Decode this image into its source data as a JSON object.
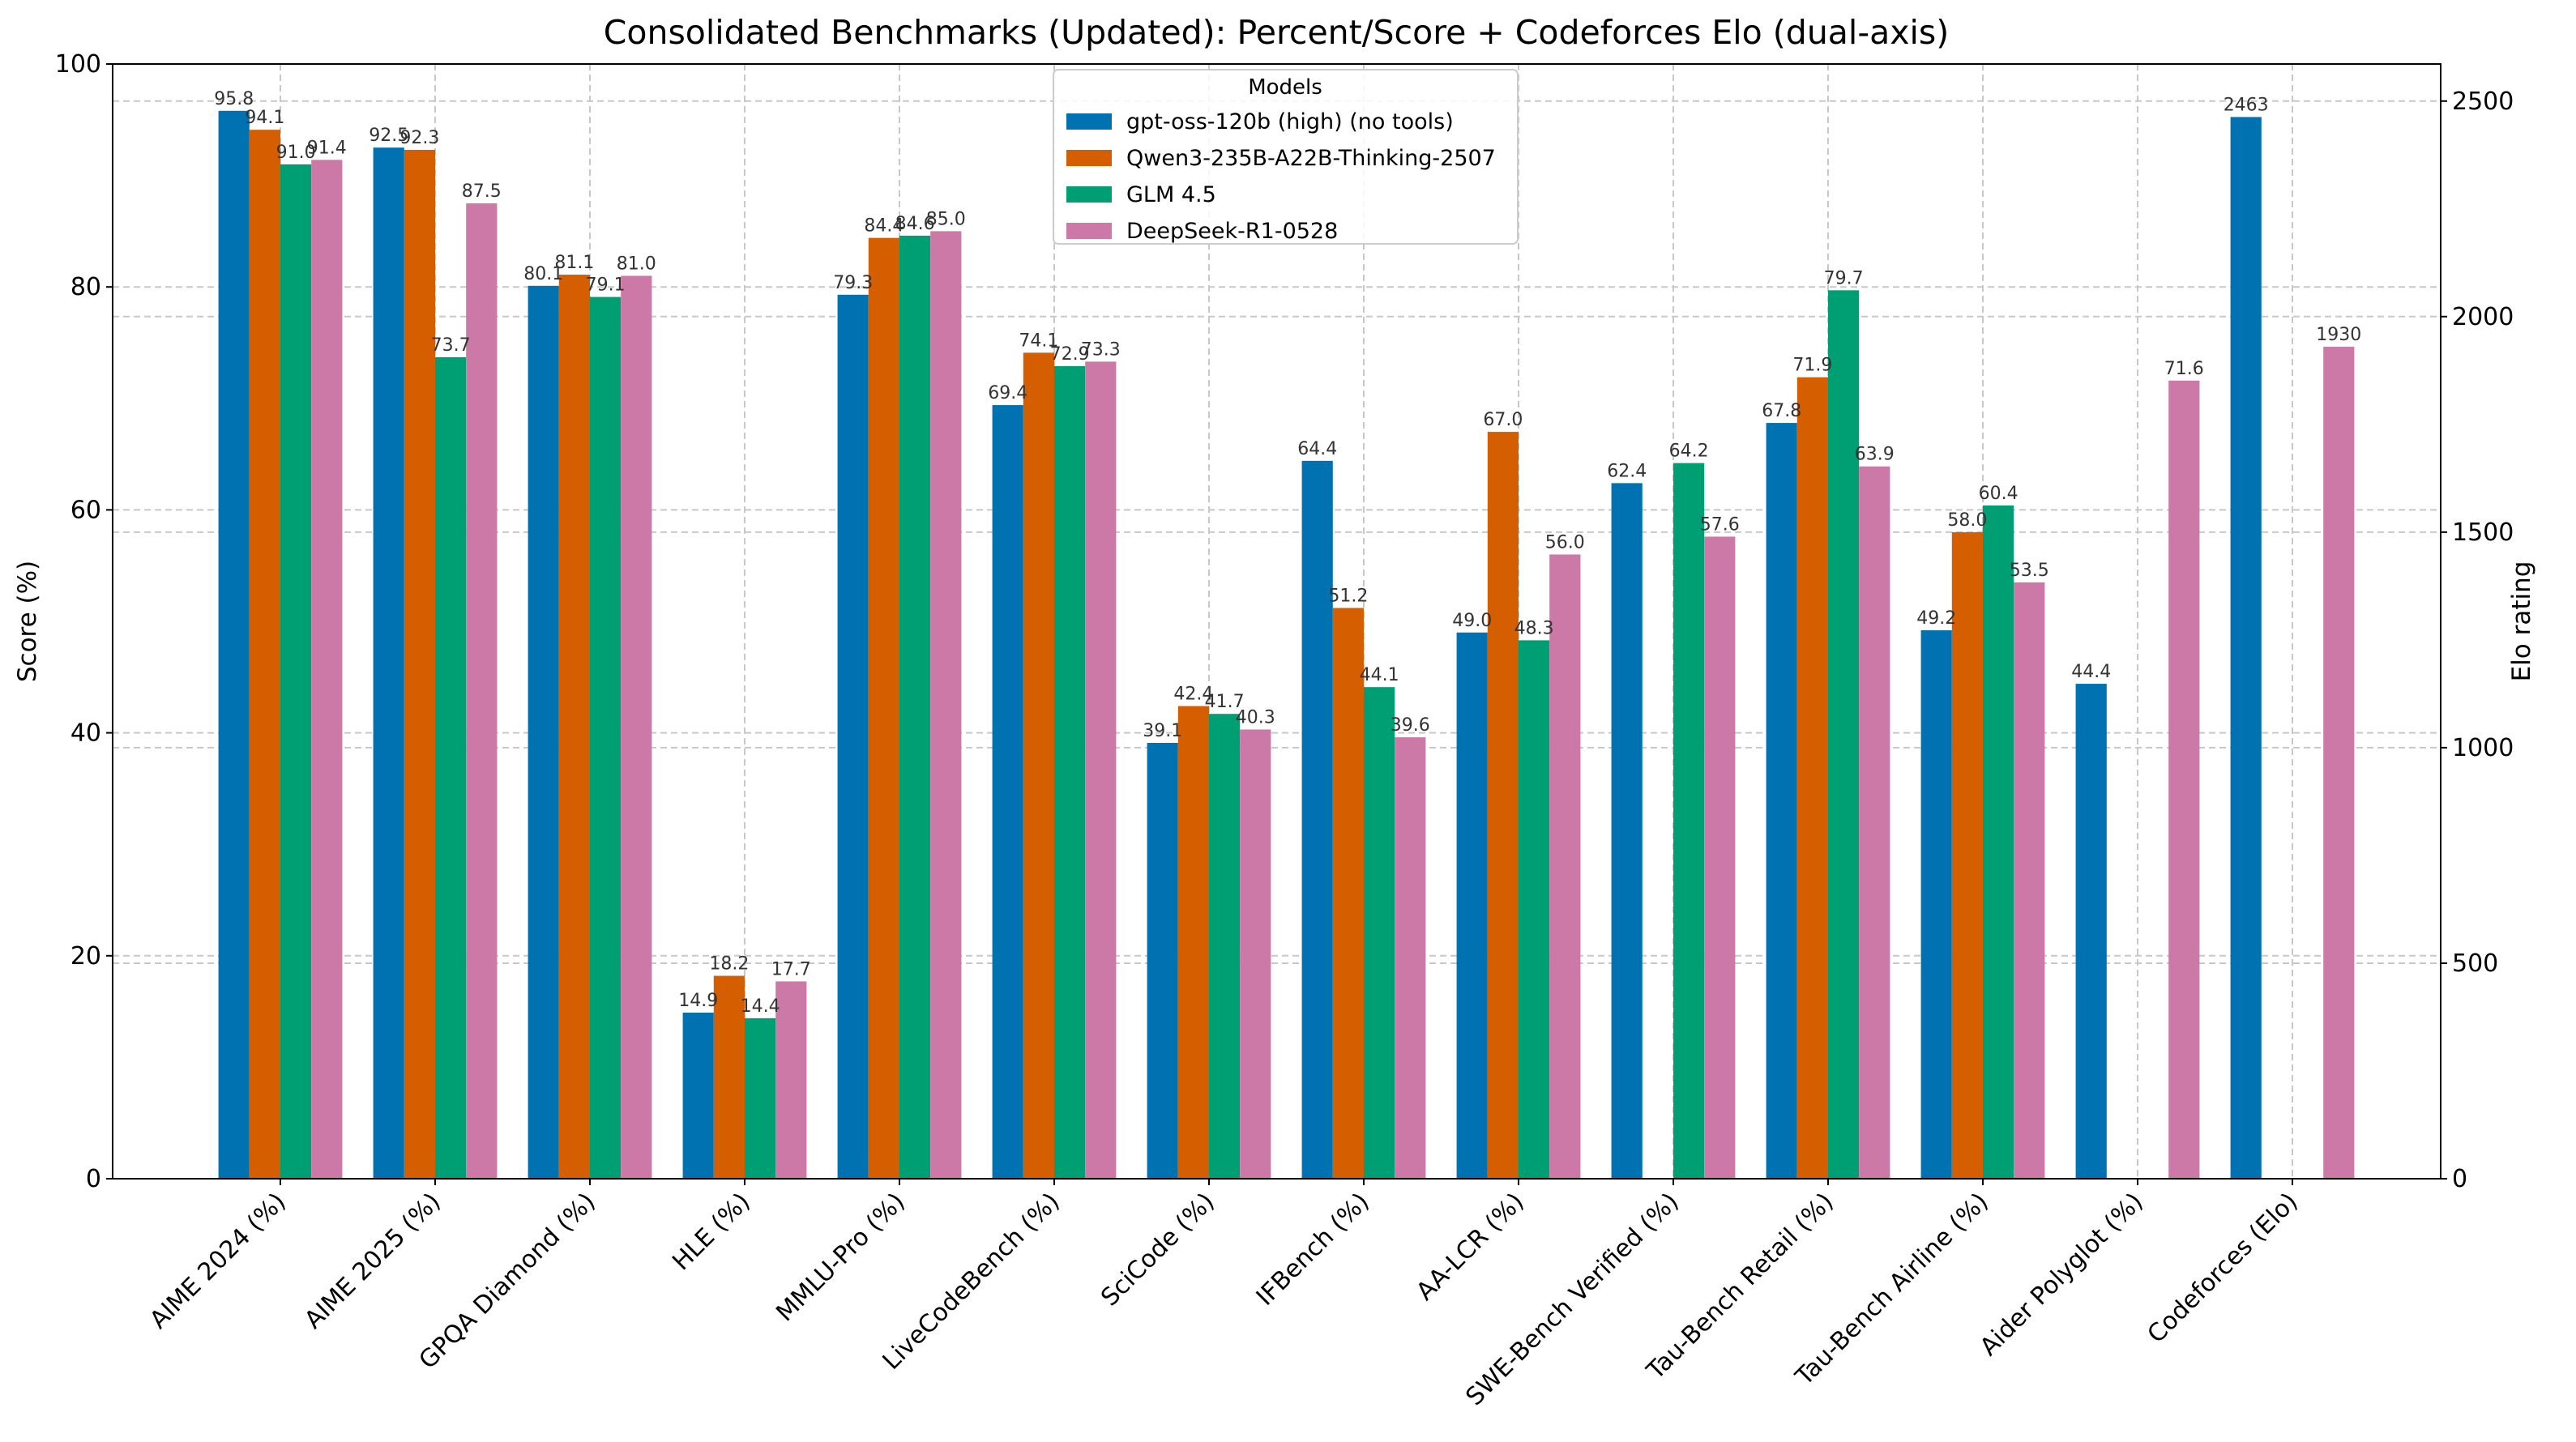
{
  "chart_data": {
    "type": "bar",
    "title": "Consolidated Benchmarks (Updated): Percent/Score + Codeforces Elo (dual-axis)",
    "ylabel": "Score (%)",
    "y2label": "Elo rating",
    "ylim": [
      0,
      100
    ],
    "y2lim": [
      0,
      2586
    ],
    "yticks": [
      0,
      20,
      40,
      60,
      80,
      100
    ],
    "y2ticks": [
      0,
      500,
      1000,
      1500,
      2000,
      2500
    ],
    "grid": true,
    "legend_title": "Models",
    "legend_position": "top-center",
    "categories": [
      "AIME 2024 (%)",
      "AIME 2025 (%)",
      "GPQA Diamond (%)",
      "HLE (%)",
      "MMLU-Pro (%)",
      "LiveCodeBench (%)",
      "SciCode (%)",
      "IFBench (%)",
      "AA-LCR (%)",
      "SWE-Bench Verified (%)",
      "Tau-Bench Retail (%)",
      "Tau-Bench Airline (%)",
      "Aider Polyglot (%)",
      "Codeforces (Elo)"
    ],
    "secondary_axis_categories": [
      "Codeforces (Elo)"
    ],
    "series": [
      {
        "name": "gpt-oss-120b (high) (no tools)",
        "color": "#0072b2",
        "values": [
          95.8,
          92.5,
          80.1,
          14.9,
          79.3,
          69.4,
          39.1,
          64.4,
          49.0,
          62.4,
          67.8,
          49.2,
          44.4,
          2463
        ]
      },
      {
        "name": "Qwen3-235B-A22B-Thinking-2507",
        "color": "#d55e00",
        "values": [
          94.1,
          92.3,
          81.1,
          18.2,
          84.4,
          74.1,
          42.4,
          51.2,
          67.0,
          null,
          71.9,
          58.0,
          null,
          null
        ]
      },
      {
        "name": "GLM 4.5",
        "color": "#009e73",
        "values": [
          91.0,
          73.7,
          79.1,
          14.4,
          84.6,
          72.9,
          41.7,
          44.1,
          48.3,
          64.2,
          79.7,
          60.4,
          null,
          null
        ]
      },
      {
        "name": "DeepSeek-R1-0528",
        "color": "#cc79a7",
        "values": [
          91.4,
          87.5,
          81.0,
          17.7,
          85.0,
          73.3,
          40.3,
          39.6,
          56.0,
          57.6,
          63.9,
          53.5,
          71.6,
          1930
        ]
      }
    ]
  }
}
